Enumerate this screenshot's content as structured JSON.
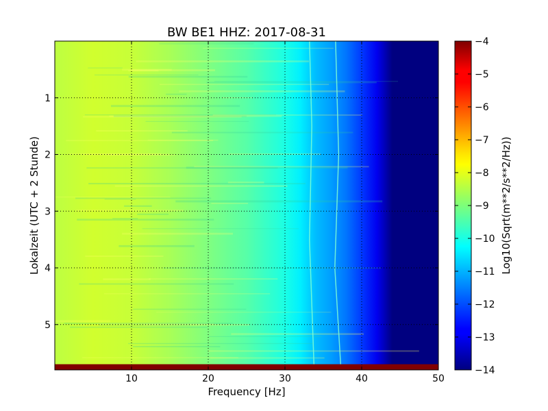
{
  "chart_data": {
    "type": "heatmap",
    "title": "BW BE1 HHZ: 2017-08-31",
    "xlabel": "Frequency [Hz]",
    "ylabel": "Lokalzeit (UTC + 2 Stunde)",
    "xlim": [
      0,
      50
    ],
    "ylim": [
      5.8,
      0
    ],
    "x_ticks": [
      10,
      20,
      30,
      40,
      50
    ],
    "y_ticks": [
      1,
      2,
      3,
      4,
      5
    ],
    "grid": true,
    "colorbar": {
      "label": "Log10(Sqrt(m**2/s**2/Hz))",
      "range": [
        -14,
        -4
      ],
      "ticks": [
        -4,
        -5,
        -6,
        -7,
        -8,
        -9,
        -10,
        -11,
        -12,
        -13,
        -14
      ],
      "colormap": "jet"
    },
    "spectrum_profile": {
      "freq_hz": [
        0,
        5,
        10,
        15,
        20,
        25,
        30,
        32,
        34,
        36,
        38,
        40,
        42,
        44,
        46,
        50
      ],
      "log10_amplitude": [
        -8.4,
        -8.2,
        -8.3,
        -8.6,
        -9.0,
        -9.4,
        -10.0,
        -10.4,
        -10.9,
        -11.2,
        -11.6,
        -12.2,
        -12.9,
        -14.0,
        -14.0,
        -14.0
      ]
    },
    "spectral_lines": [
      {
        "freq_hz": [
          33.2,
          33.5,
          33.2,
          33.8
        ],
        "time_h": [
          0,
          1.5,
          3.5,
          5.8
        ]
      },
      {
        "freq_hz": [
          36.6,
          37.0,
          36.5,
          37.3
        ],
        "time_h": [
          0,
          2.0,
          4.0,
          5.8
        ]
      }
    ],
    "bottom_band": {
      "time_h": [
        5.7,
        5.8
      ],
      "log10_amplitude": -4
    }
  }
}
